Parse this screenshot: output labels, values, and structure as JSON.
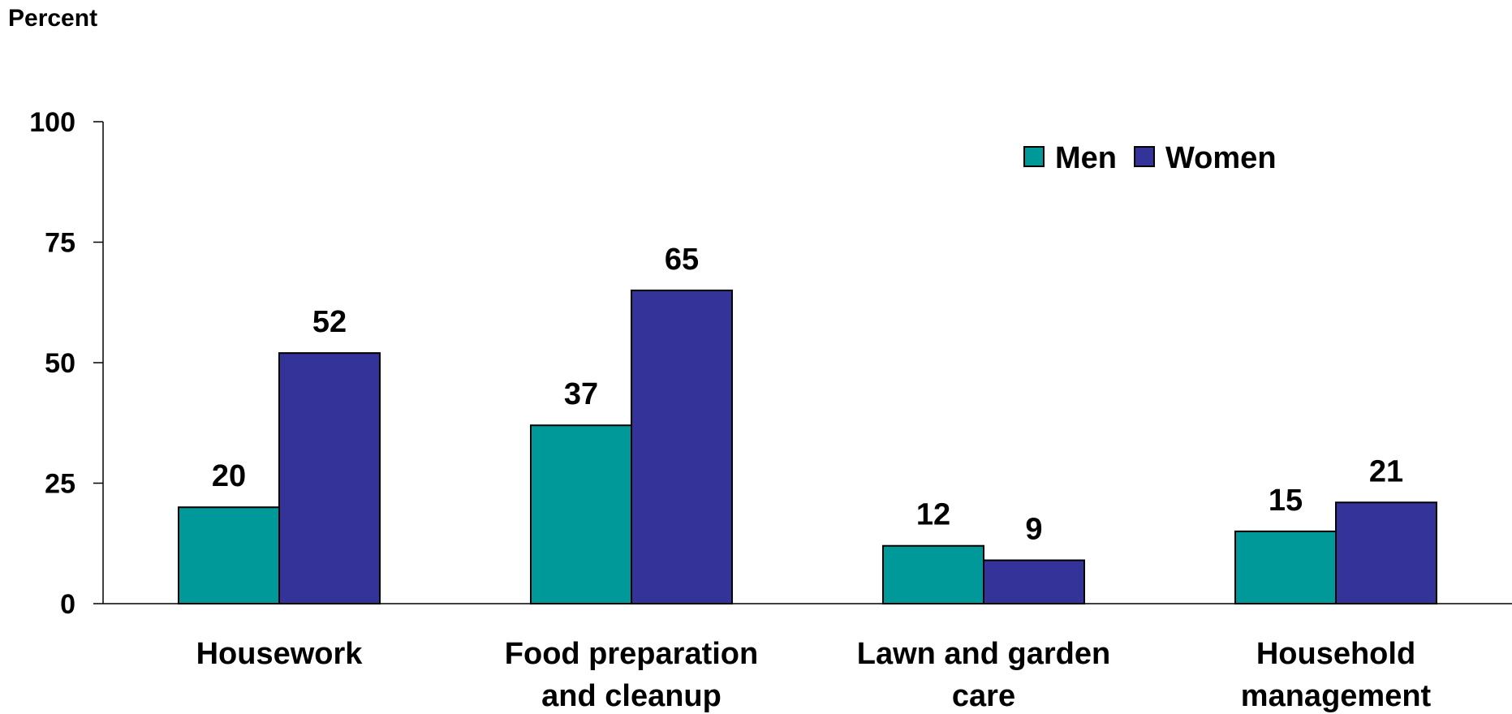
{
  "chart_data": {
    "type": "bar",
    "title": "",
    "xlabel": "",
    "ylabel": "Percent",
    "ylim": [
      0,
      100
    ],
    "yticks": [
      0,
      25,
      50,
      75,
      100
    ],
    "grid": false,
    "legend_position": "top-right",
    "categories": [
      [
        "Housework"
      ],
      [
        "Food preparation",
        "and cleanup"
      ],
      [
        "Lawn and garden",
        "care"
      ],
      [
        "Household",
        "management"
      ]
    ],
    "series": [
      {
        "name": "Men",
        "color": "#009999",
        "values": [
          20,
          37,
          12,
          15
        ]
      },
      {
        "name": "Women",
        "color": "#333399",
        "values": [
          52,
          65,
          9,
          21
        ]
      }
    ]
  }
}
